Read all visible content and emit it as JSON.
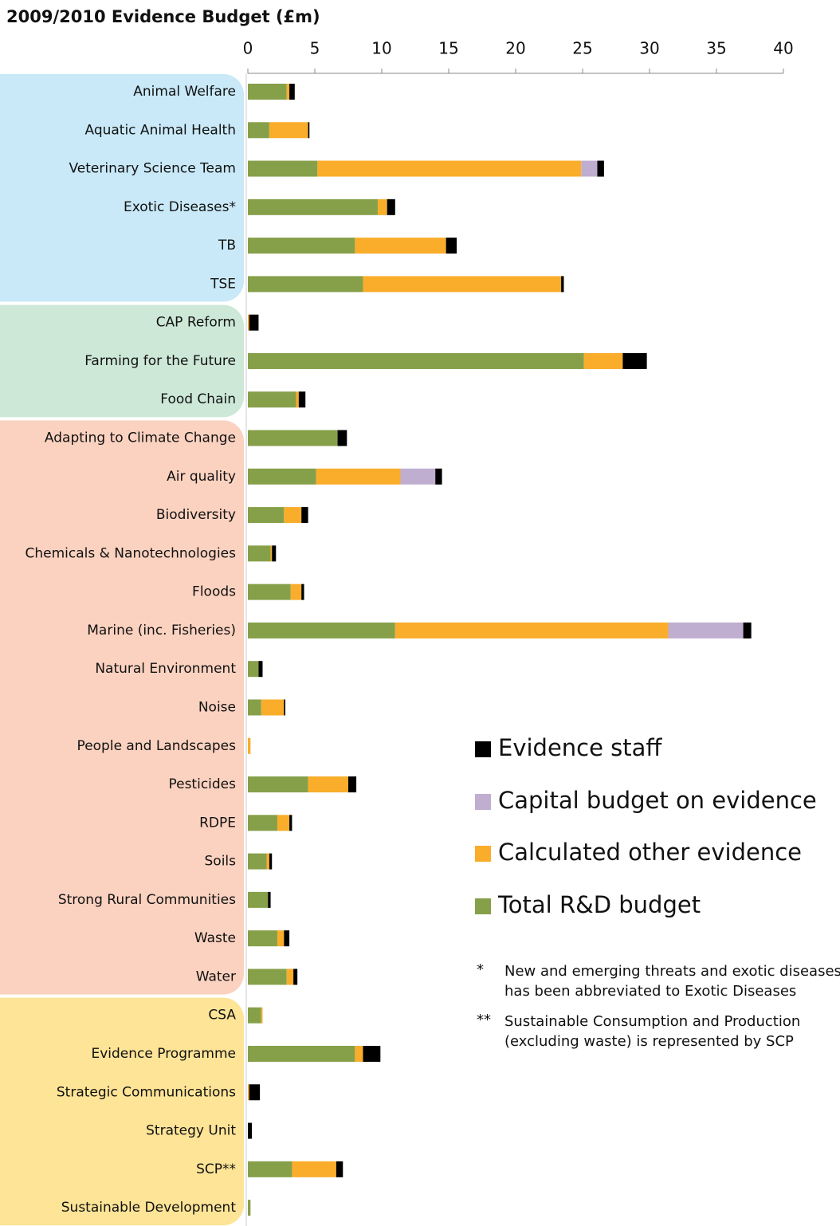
{
  "chart_data": {
    "type": "stacked-barh",
    "title": "2009/2010 Evidence Budget (£m)",
    "categories": [
      "Animal Welfare",
      "Aquatic Animal Health",
      "Veterinary Science Team",
      "Exotic Diseases*",
      "TB",
      "TSE",
      "CAP Reform",
      "Farming for the Future",
      "Food Chain",
      "Adapting to Climate Change",
      "Air quality",
      "Biodiversity",
      "Chemicals & Nanotechnologies",
      "Floods",
      "Marine (inc. Fisheries)",
      "Natural Environment",
      "Noise",
      "People and Landscapes",
      "Pesticides",
      "RDPE",
      "Soils",
      "Strong Rural Communities",
      "Waste",
      "Water",
      "CSA",
      "Evidence Programme",
      "Strategic Communications",
      "Strategy Unit",
      "SCP**",
      "Sustainable Development"
    ],
    "series": [
      {
        "name": "Total R&D budget",
        "color": "#86a04a",
        "values": [
          2.9,
          1.6,
          5.2,
          9.7,
          8.0,
          8.6,
          0,
          25.1,
          3.6,
          6.7,
          5.1,
          2.7,
          1.7,
          3.2,
          11.0,
          0.8,
          1.0,
          0,
          4.5,
          2.2,
          1.4,
          1.5,
          2.2,
          2.9,
          1.0,
          8.0,
          0,
          0,
          3.3,
          0.2
        ]
      },
      {
        "name": "Calculated other evidence",
        "color": "#f9ad2a",
        "values": [
          0.2,
          2.9,
          19.7,
          0.7,
          6.8,
          14.8,
          0.1,
          2.9,
          0.2,
          0,
          6.3,
          1.3,
          0.1,
          0.8,
          20.4,
          0,
          1.7,
          0.2,
          3.0,
          0.9,
          0.2,
          0,
          0.5,
          0.5,
          0.1,
          0.6,
          0.1,
          0,
          3.3,
          0
        ]
      },
      {
        "name": "Capital budget on evidence",
        "color": "#bfaed0",
        "values": [
          0,
          0,
          1.2,
          0,
          0,
          0,
          0,
          0,
          0,
          0,
          2.6,
          0,
          0,
          0,
          5.6,
          0,
          0,
          0,
          0,
          0,
          0,
          0,
          0,
          0,
          0,
          0,
          0,
          0,
          0,
          0
        ]
      },
      {
        "name": "Evidence staff",
        "color": "#000000",
        "values": [
          0.4,
          0.1,
          0.5,
          0.6,
          0.8,
          0.2,
          0.7,
          1.8,
          0.5,
          0.7,
          0.5,
          0.5,
          0.3,
          0.2,
          0.6,
          0.3,
          0.1,
          0,
          0.6,
          0.2,
          0.2,
          0.2,
          0.4,
          0.3,
          0,
          1.3,
          0.8,
          0.3,
          0.5,
          0
        ]
      }
    ],
    "xlim": [
      0,
      40
    ],
    "xticks": [
      0,
      5,
      10,
      15,
      20,
      25,
      30,
      35,
      40
    ],
    "groups": [
      {
        "start": 0,
        "end": 5,
        "color": "#c9e9f8"
      },
      {
        "start": 6,
        "end": 8,
        "color": "#cde8d7"
      },
      {
        "start": 9,
        "end": 23,
        "color": "#fbd2c0"
      },
      {
        "start": 24,
        "end": 29,
        "color": "#fde497"
      }
    ],
    "notes": [
      {
        "symbol": "*",
        "lines": [
          "New and emerging threats and exotic diseases",
          "has been abbreviated to Exotic Diseases"
        ]
      },
      {
        "symbol": "**",
        "lines": [
          "Sustainable Consumption and Production",
          "(excluding waste) is represented by SCP"
        ]
      }
    ]
  }
}
